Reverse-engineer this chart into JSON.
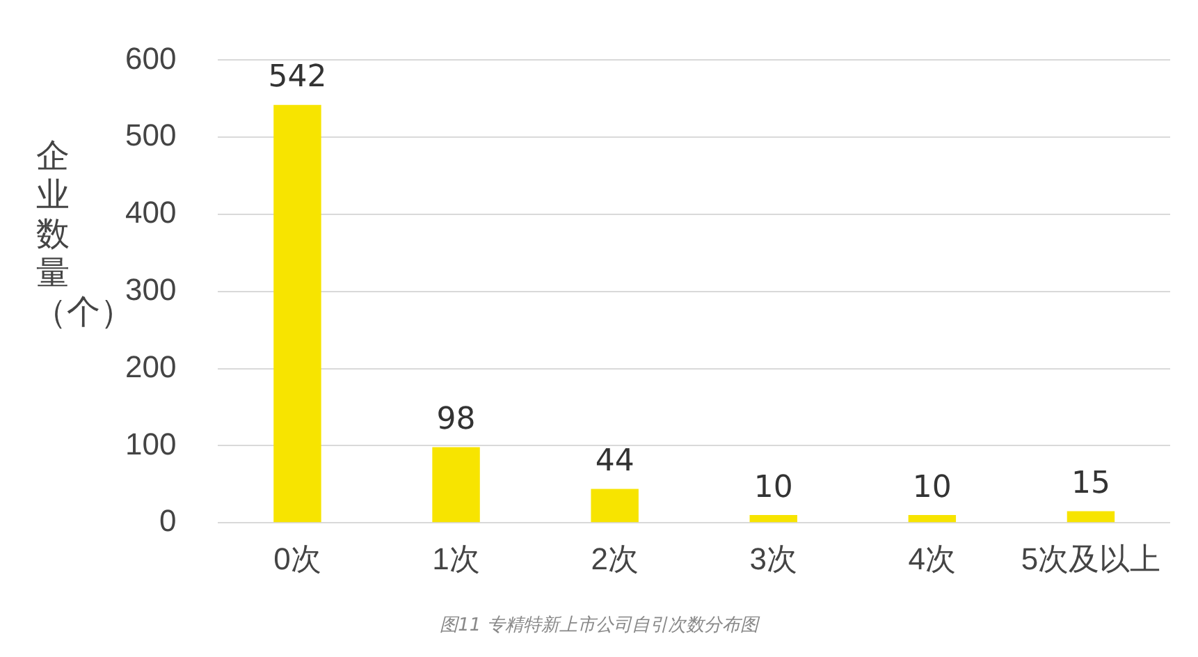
{
  "chart_data": {
    "type": "bar",
    "ylabel": "企业数量（个）",
    "categories": [
      "0次",
      "1次",
      "2次",
      "3次",
      "4次",
      "5次及以上"
    ],
    "values": [
      542,
      98,
      44,
      10,
      10,
      15
    ],
    "color": "#f7e400",
    "ylim": [
      0,
      600
    ],
    "yticks": [
      0,
      100,
      200,
      300,
      400,
      500,
      600
    ],
    "grid": "y",
    "data_labels": true,
    "annotations": [
      "图11 专精特新上市公司自引次数分布图"
    ]
  }
}
